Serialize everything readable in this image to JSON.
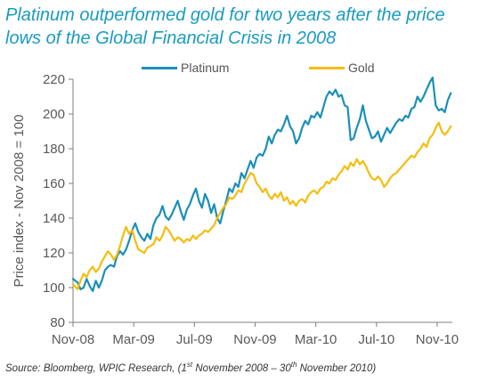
{
  "title_line1": "Platinum outperformed gold for two years after the price",
  "title_line2": "lows of the Global Financial Crisis in 2008",
  "source": {
    "prefix": "Source: Bloomberg, WPIC Research, (1",
    "sup1": "st",
    "middle": " November 2008 – 30",
    "sup2": "th",
    "suffix": " November 2010)"
  },
  "colors": {
    "platinum": "#1a8fb8",
    "gold": "#f5bd0f",
    "axis": "#7f7f7f",
    "text": "#595959"
  },
  "chart_data": {
    "type": "line",
    "ylabel": "Price index - Nov 2008 = 100",
    "xlabel": "",
    "ylim": [
      80,
      220
    ],
    "yticks": [
      80,
      100,
      120,
      140,
      160,
      180,
      200,
      220
    ],
    "x_tick_labels": [
      "Nov-08",
      "Mar-09",
      "Jul-09",
      "Nov-09",
      "Mar-10",
      "Jul-10",
      "Nov-10"
    ],
    "x_tick_months": [
      0,
      4,
      8,
      12,
      16,
      20,
      24
    ],
    "x_range_months": [
      0,
      25
    ],
    "legend_position": "top-center",
    "grid": false,
    "series": [
      {
        "name": "Platinum",
        "color": "#1a8fb8",
        "points": [
          [
            0,
            105
          ],
          [
            0.3,
            103
          ],
          [
            0.5,
            99
          ],
          [
            0.7,
            100
          ],
          [
            0.9,
            105
          ],
          [
            1.1,
            101
          ],
          [
            1.3,
            98
          ],
          [
            1.5,
            104
          ],
          [
            1.7,
            100
          ],
          [
            1.9,
            104
          ],
          [
            2.1,
            110
          ],
          [
            2.3,
            112
          ],
          [
            2.5,
            113
          ],
          [
            2.7,
            112
          ],
          [
            2.9,
            118
          ],
          [
            3.1,
            121
          ],
          [
            3.3,
            119
          ],
          [
            3.5,
            122
          ],
          [
            3.7,
            127
          ],
          [
            3.9,
            133
          ],
          [
            4.1,
            137
          ],
          [
            4.3,
            132
          ],
          [
            4.5,
            129
          ],
          [
            4.7,
            127
          ],
          [
            4.9,
            131
          ],
          [
            5.1,
            128
          ],
          [
            5.3,
            136
          ],
          [
            5.5,
            140
          ],
          [
            5.7,
            142
          ],
          [
            5.9,
            147
          ],
          [
            6.1,
            141
          ],
          [
            6.3,
            139
          ],
          [
            6.5,
            142
          ],
          [
            6.7,
            146
          ],
          [
            6.9,
            150
          ],
          [
            7.1,
            144
          ],
          [
            7.3,
            139
          ],
          [
            7.5,
            145
          ],
          [
            7.7,
            148
          ],
          [
            7.9,
            153
          ],
          [
            8.1,
            157
          ],
          [
            8.3,
            150
          ],
          [
            8.5,
            146
          ],
          [
            8.7,
            154
          ],
          [
            8.9,
            150
          ],
          [
            9.1,
            143
          ],
          [
            9.3,
            148
          ],
          [
            9.5,
            140
          ],
          [
            9.7,
            137
          ],
          [
            9.9,
            144
          ],
          [
            10.1,
            150
          ],
          [
            10.3,
            157
          ],
          [
            10.5,
            155
          ],
          [
            10.7,
            160
          ],
          [
            10.9,
            158
          ],
          [
            11.1,
            166
          ],
          [
            11.3,
            163
          ],
          [
            11.5,
            168
          ],
          [
            11.7,
            173
          ],
          [
            11.9,
            169
          ],
          [
            12.1,
            175
          ],
          [
            12.3,
            177
          ],
          [
            12.5,
            176
          ],
          [
            12.7,
            180
          ],
          [
            12.9,
            187
          ],
          [
            13.1,
            183
          ],
          [
            13.3,
            188
          ],
          [
            13.5,
            191
          ],
          [
            13.7,
            190
          ],
          [
            13.9,
            194
          ],
          [
            14.1,
            199
          ],
          [
            14.3,
            193
          ],
          [
            14.5,
            190
          ],
          [
            14.7,
            183
          ],
          [
            14.9,
            186
          ],
          [
            15.1,
            192
          ],
          [
            15.3,
            196
          ],
          [
            15.5,
            194
          ],
          [
            15.7,
            199
          ],
          [
            15.9,
            198
          ],
          [
            16.1,
            201
          ],
          [
            16.3,
            198
          ],
          [
            16.5,
            204
          ],
          [
            16.7,
            210
          ],
          [
            16.9,
            213
          ],
          [
            17.1,
            211
          ],
          [
            17.3,
            214
          ],
          [
            17.5,
            210
          ],
          [
            17.7,
            211
          ],
          [
            17.9,
            205
          ],
          [
            18.1,
            204
          ],
          [
            18.3,
            185
          ],
          [
            18.5,
            186
          ],
          [
            18.7,
            192
          ],
          [
            18.9,
            197
          ],
          [
            19.1,
            205
          ],
          [
            19.3,
            196
          ],
          [
            19.5,
            191
          ],
          [
            19.7,
            186
          ],
          [
            19.9,
            187
          ],
          [
            20.1,
            190
          ],
          [
            20.3,
            184
          ],
          [
            20.5,
            188
          ],
          [
            20.7,
            192
          ],
          [
            20.9,
            189
          ],
          [
            21.1,
            192
          ],
          [
            21.3,
            195
          ],
          [
            21.5,
            197
          ],
          [
            21.7,
            196
          ],
          [
            21.9,
            199
          ],
          [
            22.1,
            198
          ],
          [
            22.3,
            203
          ],
          [
            22.5,
            204
          ],
          [
            22.7,
            210
          ],
          [
            22.9,
            207
          ],
          [
            23.1,
            210
          ],
          [
            23.3,
            214
          ],
          [
            23.5,
            218
          ],
          [
            23.7,
            221
          ],
          [
            23.9,
            205
          ],
          [
            24.1,
            202
          ],
          [
            24.3,
            203
          ],
          [
            24.5,
            201
          ],
          [
            24.7,
            208
          ],
          [
            24.9,
            212
          ]
        ]
      },
      {
        "name": "Gold",
        "color": "#f5bd0f",
        "points": [
          [
            0,
            102
          ],
          [
            0.3,
            99
          ],
          [
            0.5,
            104
          ],
          [
            0.7,
            108
          ],
          [
            0.9,
            106
          ],
          [
            1.1,
            110
          ],
          [
            1.3,
            112
          ],
          [
            1.5,
            109
          ],
          [
            1.7,
            111
          ],
          [
            1.9,
            115
          ],
          [
            2.1,
            118
          ],
          [
            2.3,
            121
          ],
          [
            2.5,
            119
          ],
          [
            2.7,
            116
          ],
          [
            2.9,
            119
          ],
          [
            3.1,
            124
          ],
          [
            3.3,
            130
          ],
          [
            3.5,
            135
          ],
          [
            3.7,
            131
          ],
          [
            3.9,
            133
          ],
          [
            4.1,
            127
          ],
          [
            4.3,
            122
          ],
          [
            4.5,
            121
          ],
          [
            4.7,
            120
          ],
          [
            4.9,
            123
          ],
          [
            5.1,
            124
          ],
          [
            5.3,
            125
          ],
          [
            5.5,
            129
          ],
          [
            5.7,
            127
          ],
          [
            5.9,
            130
          ],
          [
            6.1,
            135
          ],
          [
            6.3,
            133
          ],
          [
            6.5,
            130
          ],
          [
            6.7,
            127
          ],
          [
            6.9,
            129
          ],
          [
            7.1,
            128
          ],
          [
            7.3,
            126
          ],
          [
            7.5,
            128
          ],
          [
            7.7,
            127
          ],
          [
            7.9,
            130
          ],
          [
            8.1,
            128
          ],
          [
            8.3,
            130
          ],
          [
            8.5,
            131
          ],
          [
            8.7,
            133
          ],
          [
            8.9,
            132
          ],
          [
            9.1,
            134
          ],
          [
            9.3,
            136
          ],
          [
            9.5,
            140
          ],
          [
            9.7,
            143
          ],
          [
            9.9,
            146
          ],
          [
            10.1,
            148
          ],
          [
            10.3,
            152
          ],
          [
            10.5,
            151
          ],
          [
            10.7,
            153
          ],
          [
            10.9,
            156
          ],
          [
            11.1,
            155
          ],
          [
            11.3,
            160
          ],
          [
            11.5,
            163
          ],
          [
            11.7,
            166
          ],
          [
            11.9,
            165
          ],
          [
            12.1,
            160
          ],
          [
            12.3,
            158
          ],
          [
            12.5,
            155
          ],
          [
            12.7,
            157
          ],
          [
            12.9,
            153
          ],
          [
            13.1,
            151
          ],
          [
            13.3,
            154
          ],
          [
            13.5,
            152
          ],
          [
            13.7,
            155
          ],
          [
            13.9,
            150
          ],
          [
            14.1,
            152
          ],
          [
            14.3,
            148
          ],
          [
            14.5,
            150
          ],
          [
            14.7,
            147
          ],
          [
            14.9,
            150
          ],
          [
            15.1,
            151
          ],
          [
            15.3,
            149
          ],
          [
            15.5,
            153
          ],
          [
            15.7,
            155
          ],
          [
            15.9,
            156
          ],
          [
            16.1,
            154
          ],
          [
            16.3,
            157
          ],
          [
            16.5,
            158
          ],
          [
            16.7,
            161
          ],
          [
            16.9,
            160
          ],
          [
            17.1,
            163
          ],
          [
            17.3,
            162
          ],
          [
            17.5,
            165
          ],
          [
            17.7,
            167
          ],
          [
            17.9,
            170
          ],
          [
            18.1,
            168
          ],
          [
            18.3,
            172
          ],
          [
            18.5,
            170
          ],
          [
            18.7,
            174
          ],
          [
            18.9,
            171
          ],
          [
            19.1,
            173
          ],
          [
            19.3,
            170
          ],
          [
            19.5,
            166
          ],
          [
            19.7,
            163
          ],
          [
            19.9,
            162
          ],
          [
            20.1,
            164
          ],
          [
            20.3,
            162
          ],
          [
            20.5,
            158
          ],
          [
            20.7,
            160
          ],
          [
            20.9,
            163
          ],
          [
            21.1,
            165
          ],
          [
            21.3,
            166
          ],
          [
            21.5,
            168
          ],
          [
            21.7,
            170
          ],
          [
            21.9,
            172
          ],
          [
            22.1,
            174
          ],
          [
            22.3,
            176
          ],
          [
            22.5,
            175
          ],
          [
            22.7,
            178
          ],
          [
            22.9,
            180
          ],
          [
            23.1,
            183
          ],
          [
            23.3,
            181
          ],
          [
            23.5,
            186
          ],
          [
            23.7,
            188
          ],
          [
            23.9,
            192
          ],
          [
            24.1,
            195
          ],
          [
            24.3,
            190
          ],
          [
            24.5,
            188
          ],
          [
            24.7,
            190
          ],
          [
            24.9,
            193
          ]
        ]
      }
    ]
  }
}
